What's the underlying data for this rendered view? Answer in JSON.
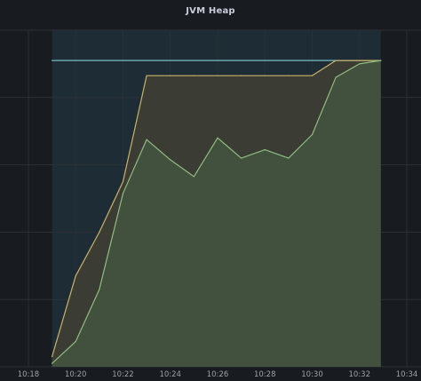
{
  "panel": {
    "title": "JVM Heap"
  },
  "chart_data": {
    "type": "area",
    "title": "JVM Heap",
    "xlabel": "",
    "ylabel": "",
    "x_tick_labels": [
      "10:18",
      "10:20",
      "10:22",
      "10:24",
      "10:26",
      "10:28",
      "10:30",
      "10:32",
      "10:34"
    ],
    "x_tick_minutes": [
      18,
      20,
      22,
      24,
      26,
      28,
      30,
      32,
      34
    ],
    "xlim_minutes": [
      16.8,
      34.6
    ],
    "ylim": [
      0,
      100
    ],
    "grid": true,
    "legend": "none",
    "band": {
      "x_start_minute": 19,
      "x_end_minute": 32.9,
      "color": "#1e2c35"
    },
    "series": [
      {
        "color": "#73bfc4",
        "fill": false,
        "points": [
          [
            19,
            91
          ],
          [
            32.9,
            91
          ]
        ]
      },
      {
        "color": "#c9b26a",
        "fill": true,
        "fill_color": "#3b3d35",
        "points": [
          [
            19,
            3
          ],
          [
            20,
            27
          ],
          [
            21,
            40
          ],
          [
            22,
            55
          ],
          [
            23,
            86.5
          ],
          [
            24,
            86.5
          ],
          [
            25,
            86.5
          ],
          [
            26,
            86.5
          ],
          [
            27,
            86.5
          ],
          [
            28,
            86.5
          ],
          [
            29,
            86.5
          ],
          [
            30,
            86.5
          ],
          [
            31,
            91
          ],
          [
            32,
            91
          ],
          [
            32.9,
            91
          ]
        ]
      },
      {
        "color": "#8fbc80",
        "fill": true,
        "fill_color": "#42513e",
        "points": [
          [
            19,
            1
          ],
          [
            20,
            7.5
          ],
          [
            21,
            23
          ],
          [
            22,
            51.5
          ],
          [
            23,
            67.5
          ],
          [
            24,
            61.5
          ],
          [
            25,
            56.5
          ],
          [
            26,
            68
          ],
          [
            27,
            62
          ],
          [
            28,
            64.5
          ],
          [
            29,
            62
          ],
          [
            30,
            69
          ],
          [
            31,
            86
          ],
          [
            32,
            90
          ],
          [
            32.9,
            91
          ]
        ]
      }
    ],
    "colors": {
      "background": "#181b1f",
      "grid": "#2c3036",
      "tick_text": "#9fa1a8"
    }
  }
}
